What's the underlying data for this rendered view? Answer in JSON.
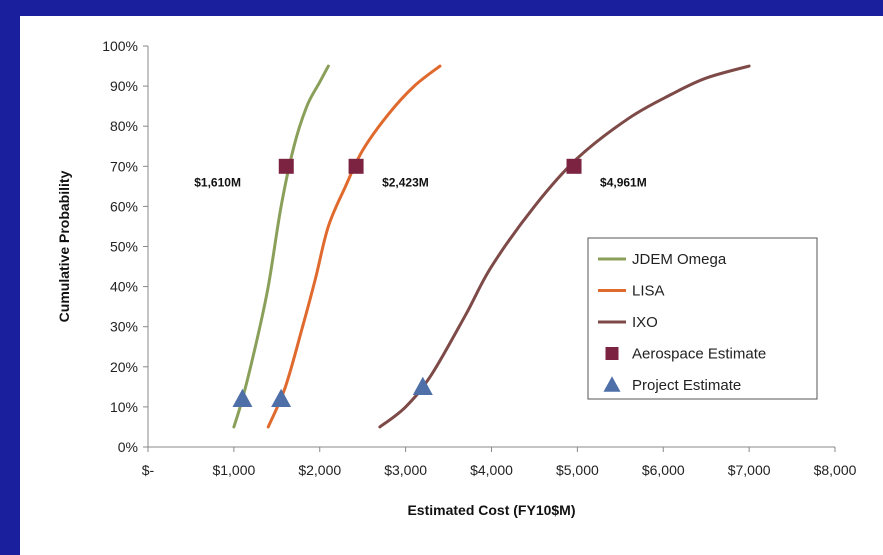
{
  "colors": {
    "background": "#1a1f9e",
    "jdem": "#8aa05a",
    "lisa": "#e06a2e",
    "ixo": "#7d4a48",
    "aerospace": "#7b2340",
    "project": "#4e6fa8"
  },
  "chart_data": {
    "type": "line",
    "title": "",
    "xlabel": "Estimated Cost (FY10$M)",
    "ylabel": "Cumulative Probability",
    "xlim": [
      0,
      8000
    ],
    "ylim": [
      0,
      100
    ],
    "x_ticks": [
      0,
      1000,
      2000,
      3000,
      4000,
      5000,
      6000,
      7000,
      8000
    ],
    "x_tick_labels": [
      "$-",
      "$1,000",
      "$2,000",
      "$3,000",
      "$4,000",
      "$5,000",
      "$6,000",
      "$7,000",
      "$8,000"
    ],
    "y_ticks": [
      0,
      10,
      20,
      30,
      40,
      50,
      60,
      70,
      80,
      90,
      100
    ],
    "y_tick_labels": [
      "0%",
      "10%",
      "20%",
      "30%",
      "40%",
      "50%",
      "60%",
      "70%",
      "80%",
      "90%",
      "100%"
    ],
    "grid": false,
    "legend_position": "right",
    "series": [
      {
        "name": "JDEM Omega",
        "color_key": "jdem",
        "x": [
          1000,
          1100,
          1250,
          1400,
          1550,
          1700,
          1850,
          2000,
          2100
        ],
        "y": [
          5,
          12,
          25,
          40,
          60,
          75,
          85,
          91,
          95
        ]
      },
      {
        "name": "LISA",
        "color_key": "lisa",
        "x": [
          1400,
          1600,
          1800,
          1950,
          2100,
          2300,
          2500,
          2800,
          3100,
          3400
        ],
        "y": [
          5,
          15,
          30,
          42,
          55,
          65,
          74,
          83,
          90,
          95
        ]
      },
      {
        "name": "IXO",
        "color_key": "ixo",
        "x": [
          2700,
          3000,
          3300,
          3700,
          4000,
          4500,
          5000,
          5600,
          6100,
          6500,
          7000
        ],
        "y": [
          5,
          10,
          18,
          33,
          45,
          60,
          72,
          82,
          88,
          92,
          95
        ]
      }
    ],
    "markers": [
      {
        "name": "Aerospace Estimate",
        "shape": "square",
        "color_key": "aerospace",
        "points": [
          {
            "x": 1610,
            "y": 70
          },
          {
            "x": 2423,
            "y": 70
          },
          {
            "x": 4961,
            "y": 70
          }
        ]
      },
      {
        "name": "Project Estimate",
        "shape": "triangle",
        "color_key": "project",
        "points": [
          {
            "x": 1100,
            "y": 12
          },
          {
            "x": 1550,
            "y": 12
          },
          {
            "x": 3200,
            "y": 15
          }
        ]
      }
    ],
    "annotations": [
      {
        "text": "$1,610M",
        "x": 1610,
        "y": 70
      },
      {
        "text": "$2,423M",
        "x": 2423,
        "y": 70
      },
      {
        "text": "$4,961M",
        "x": 4961,
        "y": 70
      }
    ],
    "legend": [
      "JDEM Omega",
      "LISA",
      "IXO",
      "Aerospace Estimate",
      "Project Estimate"
    ]
  }
}
